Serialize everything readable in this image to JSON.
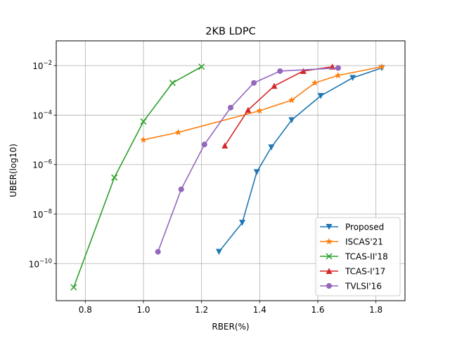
{
  "chart_data": {
    "type": "line",
    "title": "2KB LDPC",
    "xlabel": "RBER(%)",
    "ylabel": "UBER(log10)",
    "xlim": [
      0.7,
      1.9
    ],
    "ylim_log10": [
      -11.5,
      -1
    ],
    "y_scale": "log",
    "grid": true,
    "legend_position": "lower-right",
    "x_ticks": [
      0.8,
      1.0,
      1.2,
      1.4,
      1.6,
      1.8
    ],
    "x_tick_labels": [
      "0.8",
      "1.0",
      "1.2",
      "1.4",
      "1.6",
      "1.8"
    ],
    "y_ticks_log10": [
      -10,
      -8,
      -6,
      -4,
      -2
    ],
    "y_tick_labels": [
      {
        "base": "10",
        "exp": "−10"
      },
      {
        "base": "10",
        "exp": "−8"
      },
      {
        "base": "10",
        "exp": "−6"
      },
      {
        "base": "10",
        "exp": "−4"
      },
      {
        "base": "10",
        "exp": "−2"
      }
    ],
    "series": [
      {
        "name": "Proposed",
        "color": "#1f77b4",
        "marker": "triangle-down",
        "x": [
          1.26,
          1.34,
          1.39,
          1.44,
          1.51,
          1.61,
          1.72,
          1.82
        ],
        "y": [
          3e-10,
          4.5e-09,
          5e-07,
          5e-06,
          6.3e-05,
          0.0006,
          0.0032,
          0.008
        ]
      },
      {
        "name": "ISCAS'21",
        "color": "#ff7f0e",
        "marker": "star",
        "x": [
          1.0,
          1.12,
          1.4,
          1.51,
          1.59,
          1.67,
          1.82
        ],
        "y": [
          1e-05,
          2e-05,
          0.00015,
          0.0004,
          0.002,
          0.004,
          0.009
        ]
      },
      {
        "name": "TCAS-II'18",
        "color": "#2ca02c",
        "marker": "x",
        "x": [
          0.76,
          0.9,
          1.0,
          1.1,
          1.2
        ],
        "y": [
          1.1e-11,
          3e-07,
          5.5e-05,
          0.002,
          0.009
        ]
      },
      {
        "name": "TCAS-I'17",
        "color": "#d62728",
        "marker": "triangle-up",
        "x": [
          1.28,
          1.36,
          1.45,
          1.55,
          1.65
        ],
        "y": [
          5.8e-06,
          0.00016,
          0.0015,
          0.006,
          0.009
        ]
      },
      {
        "name": "TVLSI'16",
        "color": "#9467bd",
        "marker": "circle",
        "x": [
          1.05,
          1.13,
          1.21,
          1.3,
          1.38,
          1.47,
          1.67
        ],
        "y": [
          3e-10,
          1e-07,
          6.5e-06,
          0.0002,
          0.002,
          0.006,
          0.008
        ]
      }
    ]
  }
}
